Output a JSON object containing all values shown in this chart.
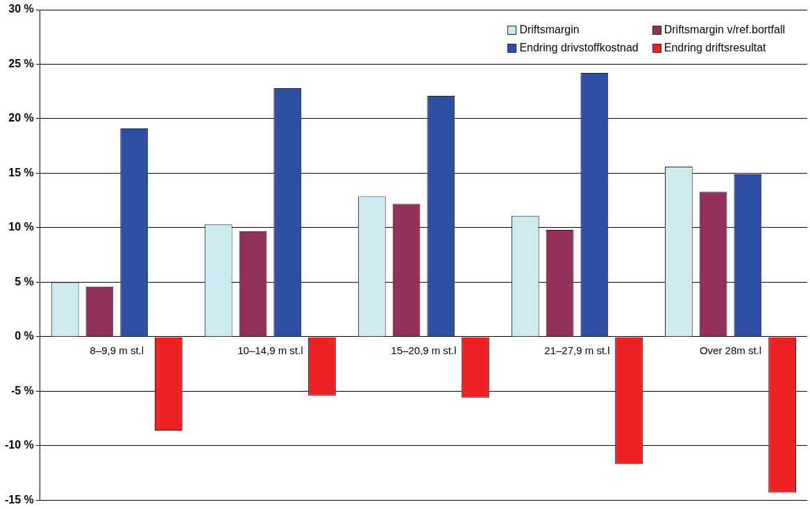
{
  "chart_data": {
    "type": "bar",
    "categories": [
      "8–9,9 m st.l",
      "10–14,9 m st.l",
      "15–20,9 m st.l",
      "21–27,9 m st.l",
      "Over 28m st.l"
    ],
    "series": [
      {
        "name": "Driftsmargin",
        "color": "#cdeaf0",
        "values": [
          5.0,
          10.3,
          12.9,
          11.1,
          15.6
        ]
      },
      {
        "name": "Driftsmargin v/ref.bortfall",
        "color": "#93305a",
        "values": [
          4.6,
          9.7,
          12.2,
          9.8,
          13.3
        ]
      },
      {
        "name": "Endring drivstoffkostnad",
        "color": "#2e4fa3",
        "values": [
          19.1,
          22.8,
          22.1,
          24.2,
          14.9
        ]
      },
      {
        "name": "Endring driftsresultat",
        "color": "#ee2222",
        "values": [
          -8.6,
          -5.4,
          -5.6,
          -11.7,
          -14.3
        ]
      }
    ],
    "ylim": [
      -15,
      30
    ],
    "yticks": [
      {
        "value": -15,
        "label": "-15 %"
      },
      {
        "value": -10,
        "label": "-10 %"
      },
      {
        "value": -5,
        "label": "-5 %"
      },
      {
        "value": 0,
        "label": "0 %"
      },
      {
        "value": 5,
        "label": "5 %"
      },
      {
        "value": 10,
        "label": "10 %"
      },
      {
        "value": 15,
        "label": "15 %"
      },
      {
        "value": 20,
        "label": "20 %"
      },
      {
        "value": 25,
        "label": "25 %"
      },
      {
        "value": 30,
        "label": "30 %"
      }
    ],
    "grid": "y",
    "legend": "top right"
  }
}
